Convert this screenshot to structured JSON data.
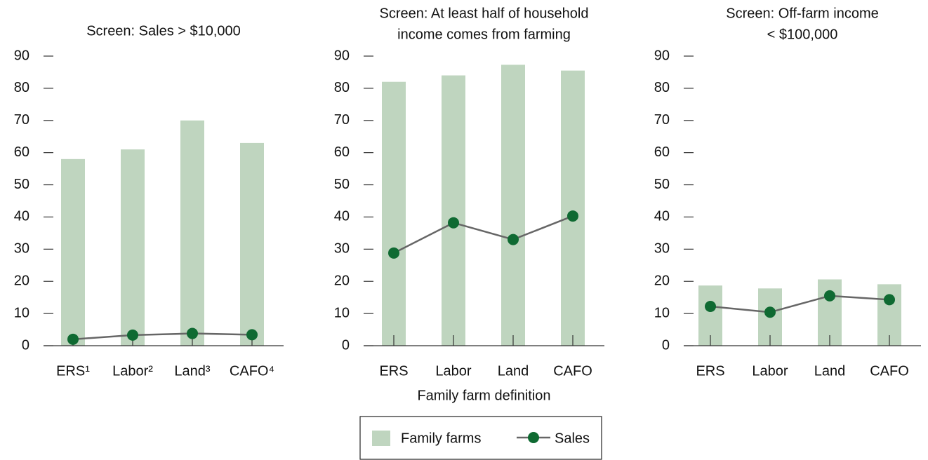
{
  "chart_data": [
    {
      "type": "bar_line",
      "title": [
        "Screen: Sales > $10,000"
      ],
      "categories": [
        "ERS¹",
        "Labor²",
        "Land³",
        "CAFO⁴"
      ],
      "series": [
        {
          "kind": "bar",
          "color": "#bfd5bf",
          "values": [
            58,
            61,
            70,
            63
          ]
        },
        {
          "kind": "line",
          "color": "#0f6a32",
          "line_color": "#666666",
          "values": [
            2,
            3.3,
            3.8,
            3.4
          ]
        }
      ],
      "ylim": [
        0,
        90
      ],
      "yticks": [
        0,
        10,
        20,
        30,
        40,
        50,
        60,
        70,
        80,
        90
      ]
    },
    {
      "type": "bar_line",
      "title": [
        "Screen: At least half of household",
        "income comes from farming"
      ],
      "categories": [
        "ERS",
        "Labor",
        "Land",
        "CAFO"
      ],
      "x_label": "Family farm definition",
      "series": [
        {
          "name": "Family farms",
          "kind": "bar",
          "color": "#bfd5bf",
          "values": [
            82,
            84,
            87.3,
            85.5
          ]
        },
        {
          "name": "Sales",
          "kind": "line",
          "color": "#0f6a32",
          "line_color": "#666666",
          "values": [
            28.8,
            38.2,
            33,
            40.3
          ]
        }
      ],
      "ylim": [
        0,
        90
      ],
      "yticks": [
        0,
        10,
        20,
        30,
        40,
        50,
        60,
        70,
        80,
        90
      ]
    },
    {
      "type": "bar_line",
      "title": [
        "Screen: Off-farm income",
        "< $100,000"
      ],
      "categories": [
        "ERS",
        "Labor",
        "Land",
        "CAFO"
      ],
      "series": [
        {
          "kind": "bar",
          "color": "#bfd5bf",
          "values": [
            18.7,
            17.8,
            20.6,
            19.1
          ]
        },
        {
          "kind": "line",
          "color": "#0f6a32",
          "line_color": "#666666",
          "values": [
            12.2,
            10.4,
            15.5,
            14.3
          ]
        }
      ],
      "ylim": [
        0,
        90
      ],
      "yticks": [
        0,
        10,
        20,
        30,
        40,
        50,
        60,
        70,
        80,
        90
      ]
    }
  ]
}
